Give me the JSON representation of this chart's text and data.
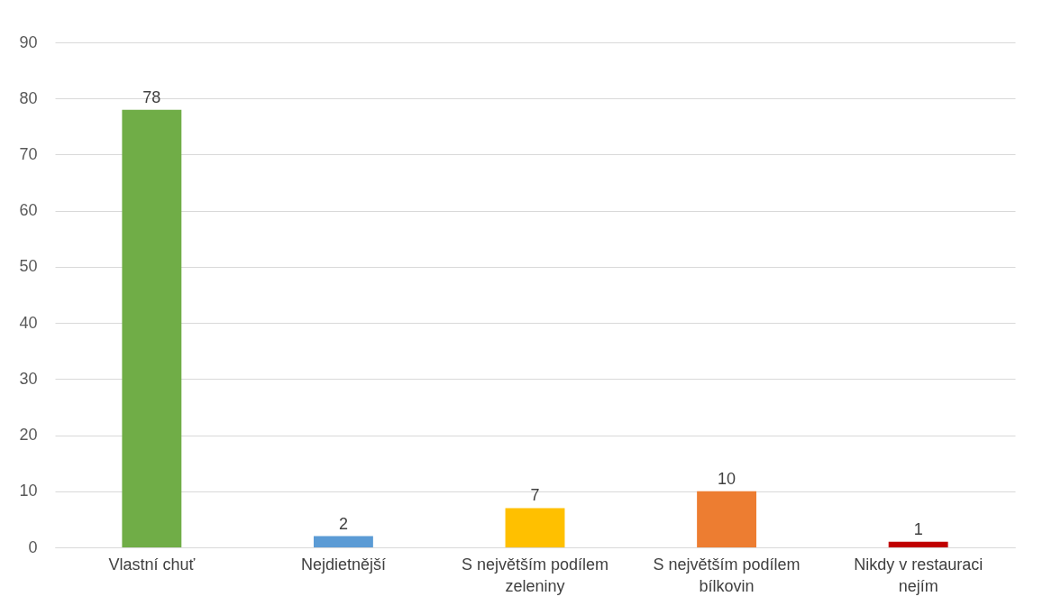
{
  "chart_data": {
    "type": "bar",
    "categories": [
      "Vlastní chuť",
      "Nejdietnější",
      "S největším podílem zeleniny",
      "S největším podílem bílkovin",
      "Nikdy v restauraci nejím"
    ],
    "values": [
      78,
      2,
      7,
      10,
      1
    ],
    "colors": [
      "#70ad47",
      "#5b9bd5",
      "#ffc000",
      "#ed7d31",
      "#c00000"
    ],
    "ylim": [
      0,
      90
    ],
    "yticks": [
      0,
      10,
      20,
      30,
      40,
      50,
      60,
      70,
      80,
      90
    ],
    "grid": "y",
    "data_labels": true
  }
}
